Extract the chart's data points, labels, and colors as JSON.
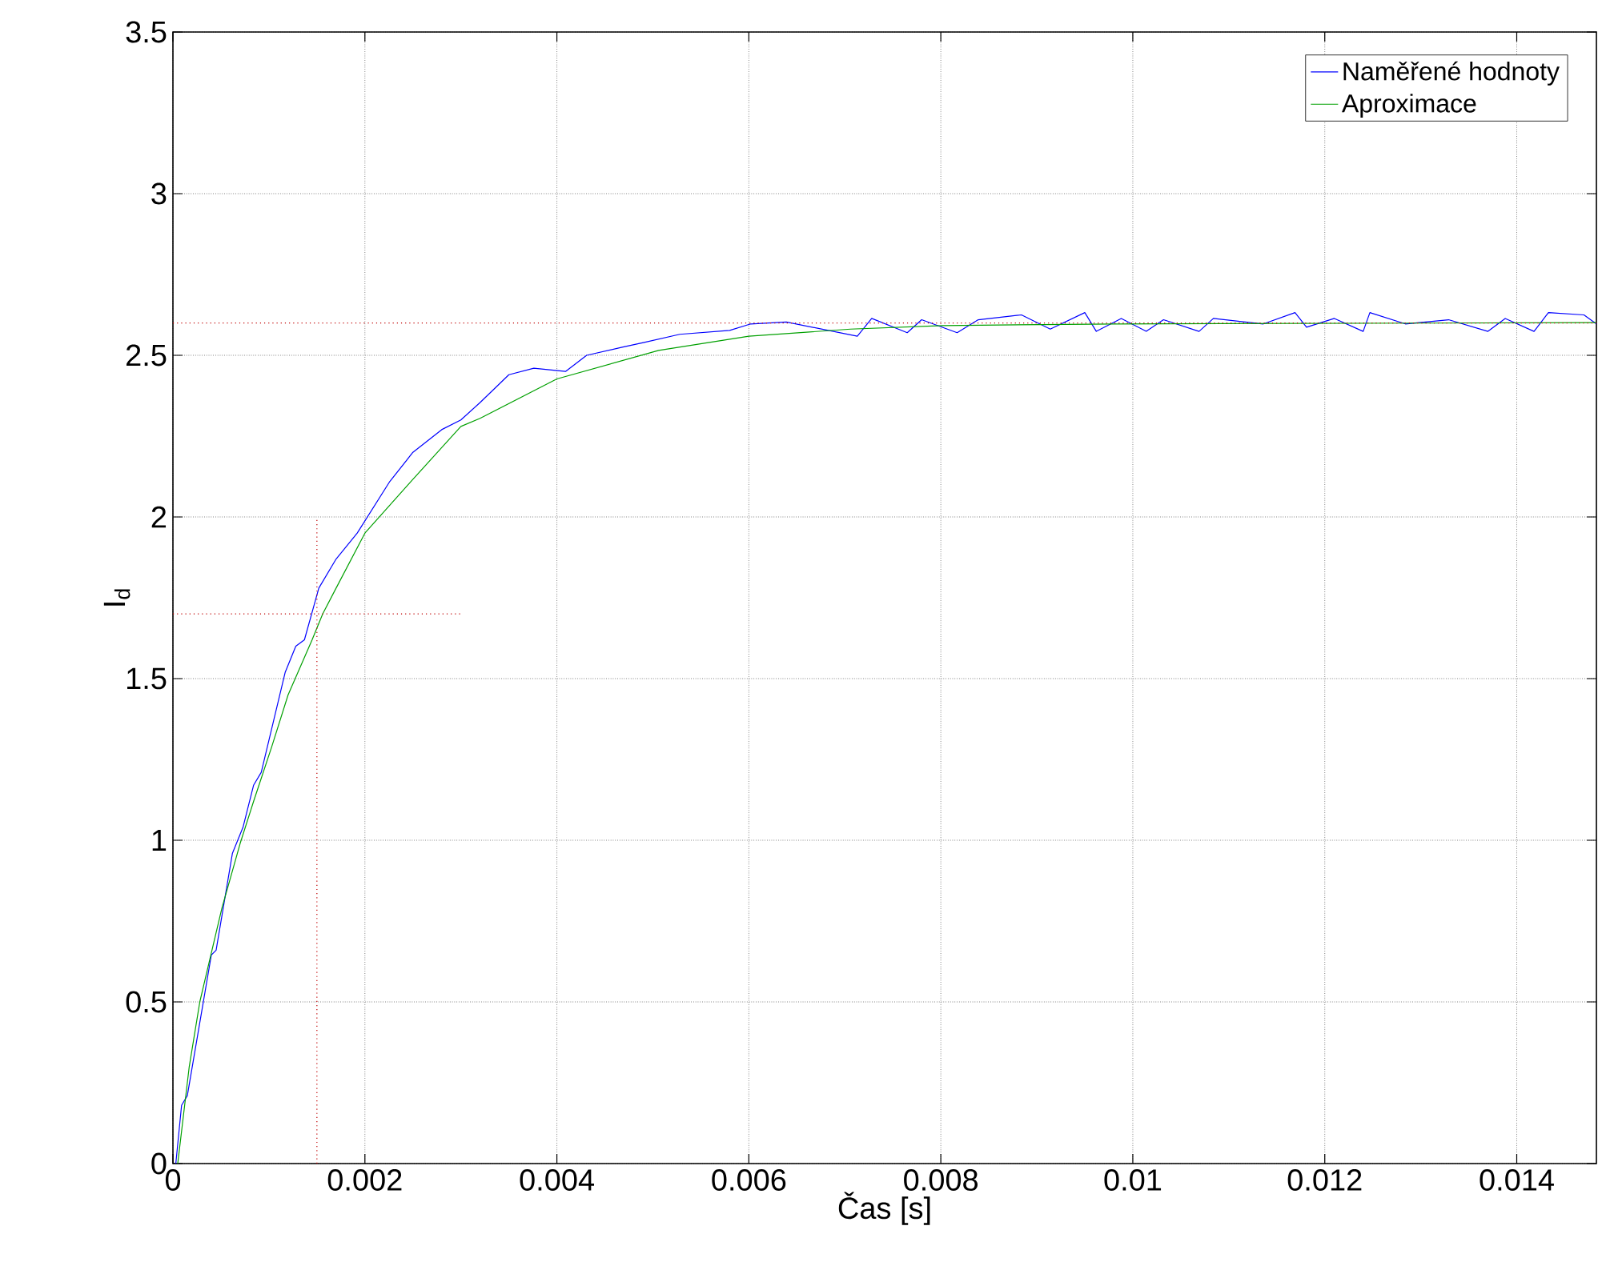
{
  "chart_data": {
    "type": "line",
    "xlabel": "Čas [s]",
    "ylabel": "I$_{d}$",
    "xlim": [
      0,
      0.01483
    ],
    "ylim": [
      0,
      3.5
    ],
    "xticks": [
      0,
      0.002,
      0.004,
      0.006,
      0.008,
      0.01,
      0.012,
      0.014
    ],
    "yticks": [
      0,
      0.5,
      1,
      1.5,
      2,
      2.5,
      3,
      3.5
    ],
    "grid": true,
    "legend": "top right",
    "marker": "none",
    "line_style": "solid",
    "ref_lines": [
      {
        "axis": "y",
        "value": 2.6,
        "color": "#c00000",
        "line_style": "dotted"
      }
    ],
    "series": [
      {
        "name": "Naměřené hodnoty",
        "color": "#0000ff",
        "x": [
          3e-05,
          9e-05,
          0.00015,
          0.0004,
          0.00045,
          0.00062,
          0.00073,
          0.00084,
          0.00092,
          0.00117,
          0.00128,
          0.00137,
          0.00152,
          0.0017,
          0.00192,
          0.00209,
          0.00226,
          0.0025,
          0.0028,
          0.003,
          0.0032,
          0.0035,
          0.00376,
          0.00409,
          0.00431,
          0.00468,
          0.00491,
          0.00528,
          0.0058,
          0.00602,
          0.00639,
          0.00713,
          0.00728,
          0.00765,
          0.0078,
          0.00817,
          0.00839,
          0.00884,
          0.00914,
          0.0095,
          0.00962,
          0.00988,
          0.01014,
          0.01032,
          0.01069,
          0.01084,
          0.01136,
          0.01169,
          0.01181,
          0.0121,
          0.0124,
          0.01247,
          0.01284,
          0.01329,
          0.0137,
          0.01388,
          0.01418,
          0.01433,
          0.0147,
          0.01483
        ],
        "values": [
          0,
          0.18,
          0.21,
          0.645,
          0.66,
          0.96,
          1.04,
          1.17,
          1.21,
          1.52,
          1.6,
          1.62,
          1.78,
          1.87,
          1.95,
          2.03,
          2.11,
          2.2,
          2.27,
          2.3,
          2.354,
          2.44,
          2.46,
          2.45,
          2.5,
          2.525,
          2.54,
          2.565,
          2.577,
          2.597,
          2.603,
          2.559,
          2.614,
          2.57,
          2.61,
          2.57,
          2.61,
          2.625,
          2.581,
          2.632,
          2.574,
          2.614,
          2.574,
          2.61,
          2.574,
          2.614,
          2.597,
          2.632,
          2.587,
          2.614,
          2.574,
          2.632,
          2.597,
          2.61,
          2.574,
          2.614,
          2.574,
          2.632,
          2.625,
          2.597
        ]
      },
      {
        "name": "Aproximace",
        "color": "#00a000",
        "x": [
          5e-05,
          0.00017,
          0.00028,
          0.00051,
          0.0007,
          0.00084,
          0.00103,
          0.0012,
          0.00145,
          0.00156,
          0.0017,
          0.002,
          0.00248,
          0.003,
          0.0032,
          0.004,
          0.00506,
          0.006,
          0.00706,
          0.00802,
          0.0098,
          0.01483
        ],
        "values": [
          0,
          0.3,
          0.5,
          0.79,
          0.99,
          1.12,
          1.29,
          1.45,
          1.62,
          1.7,
          1.78,
          1.95,
          2.11,
          2.28,
          2.305,
          2.427,
          2.515,
          2.559,
          2.581,
          2.592,
          2.597,
          2.601
        ]
      },
      {
        "type": "line",
        "color": "#c00000",
        "line_style": "dotted",
        "x": [
          0.0015,
          0.0015
        ],
        "values": [
          0,
          2
        ]
      },
      {
        "type": "line",
        "color": "#c00000",
        "line_style": "dotted",
        "x": [
          0,
          0.003
        ],
        "values": [
          1.7,
          1.7
        ]
      }
    ]
  }
}
